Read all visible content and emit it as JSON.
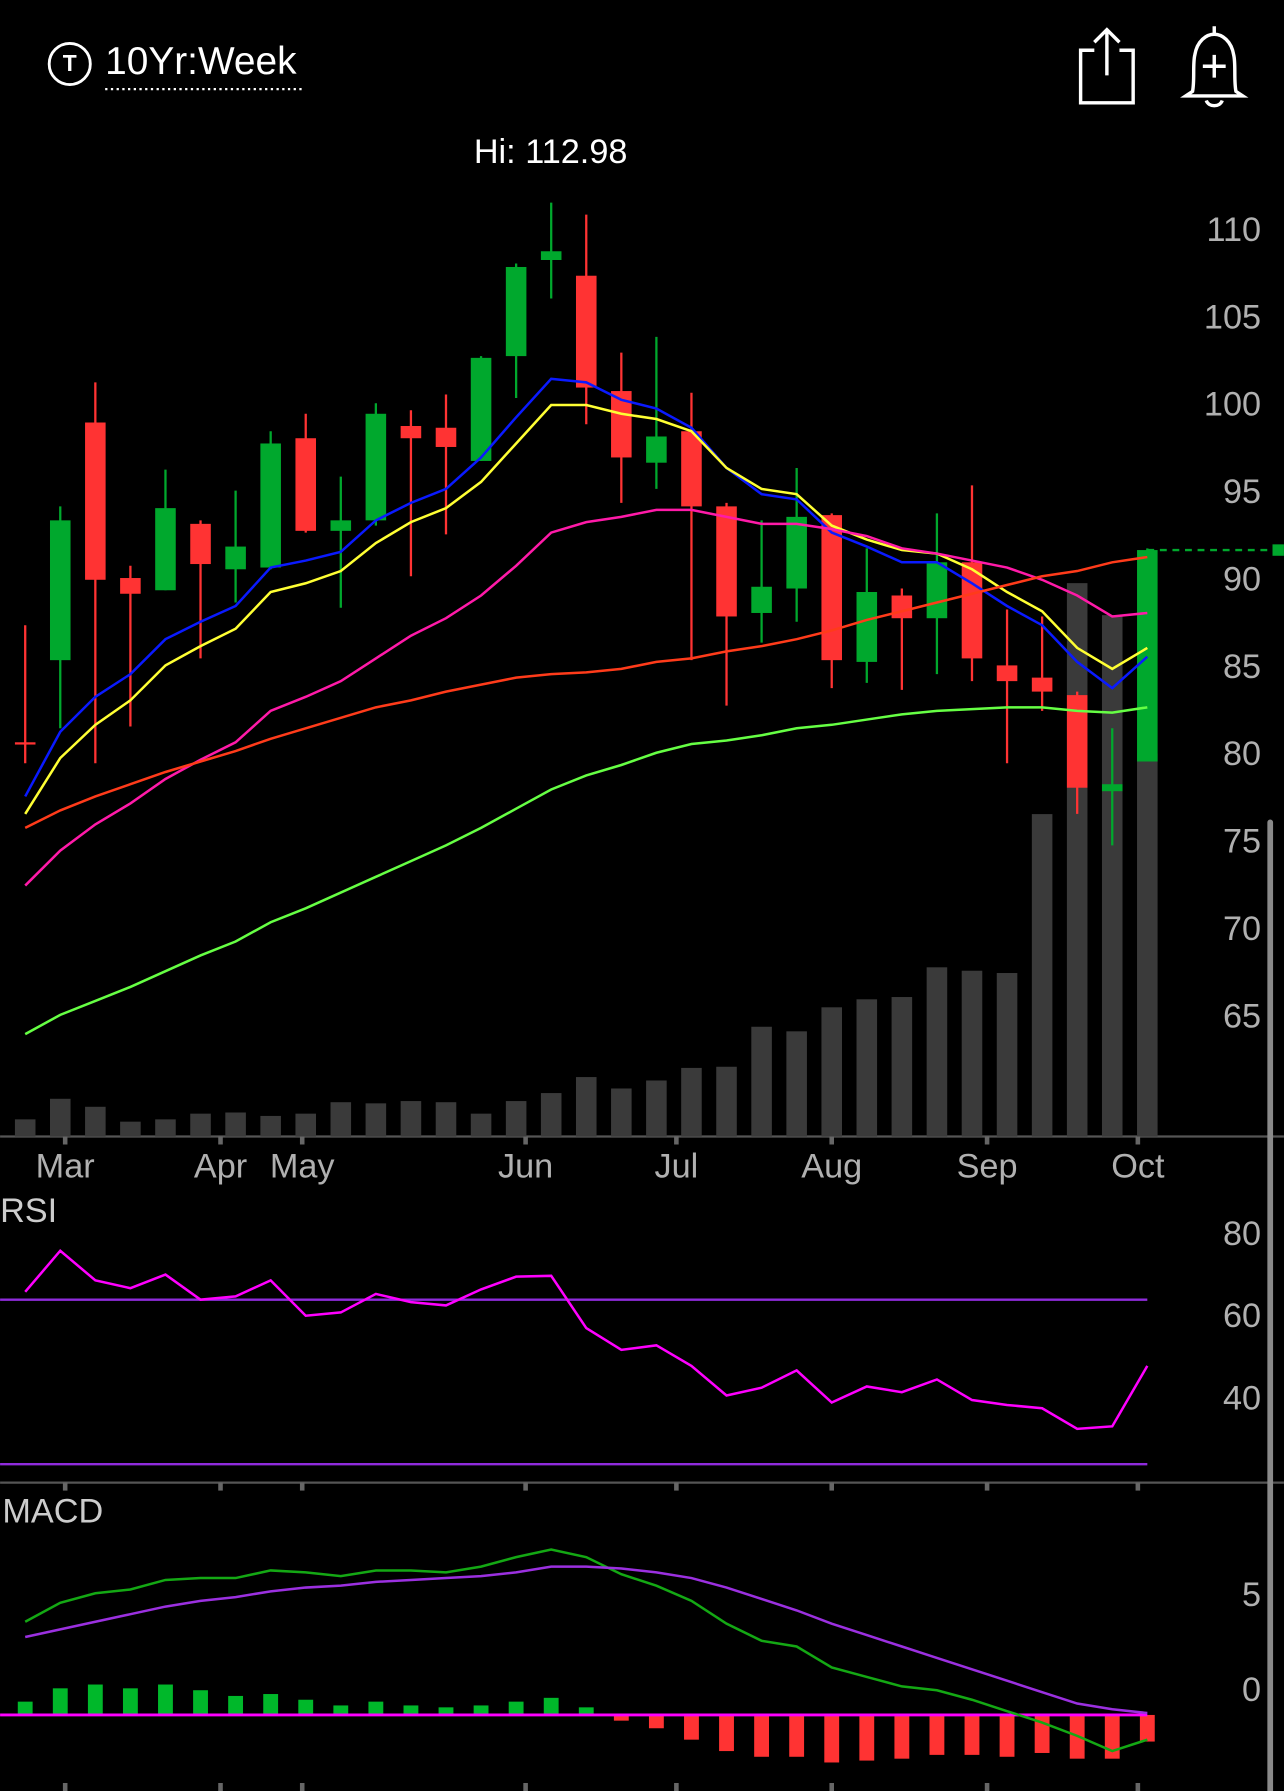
{
  "header": {
    "symbol_label": "10Yr:Week"
  },
  "chart_data": [
    {
      "type": "candlestick",
      "annotation": "Hi: 112.98",
      "categories": [
        null,
        null,
        null,
        null,
        null,
        null,
        null,
        null,
        null,
        null,
        null,
        null,
        null,
        null,
        null,
        null,
        null,
        null,
        null,
        null,
        null,
        null,
        null,
        null,
        null,
        null,
        null,
        null,
        null,
        null,
        null,
        null,
        null
      ],
      "open": [
        82.1,
        86.8,
        100.4,
        91.5,
        90.8,
        94.6,
        92.0,
        92.1,
        99.5,
        94.2,
        94.8,
        100.2,
        100.1,
        98.2,
        104.2,
        109.7,
        108.8,
        102.2,
        98.1,
        99.9,
        95.6,
        89.5,
        90.9,
        95.1,
        86.7,
        90.5,
        89.2,
        92.4,
        86.5,
        85.8,
        84.8,
        79.3,
        81.0
      ],
      "high": [
        88.8,
        95.6,
        102.7,
        92.2,
        97.7,
        94.8,
        96.5,
        99.9,
        100.9,
        97.3,
        101.5,
        101.1,
        102.0,
        104.2,
        109.5,
        112.98,
        112.3,
        104.4,
        105.3,
        102.1,
        95.8,
        94.8,
        97.8,
        95.2,
        93.2,
        90.9,
        95.2,
        96.8,
        89.7,
        89.3,
        85.0,
        82.9,
        93.2
      ],
      "low": [
        80.9,
        82.9,
        80.9,
        83.0,
        90.8,
        86.9,
        90.1,
        92.0,
        94.1,
        89.8,
        94.5,
        91.6,
        94.0,
        98.2,
        101.8,
        107.5,
        100.3,
        95.8,
        96.6,
        86.8,
        84.2,
        87.8,
        89.0,
        85.2,
        85.5,
        85.1,
        86.0,
        85.6,
        80.9,
        83.9,
        78.0,
        76.2,
        81.0
      ],
      "close": [
        82.0,
        94.8,
        91.4,
        90.6,
        95.5,
        92.3,
        93.3,
        99.2,
        94.2,
        94.8,
        100.9,
        99.5,
        99.0,
        104.1,
        109.3,
        110.2,
        102.4,
        98.4,
        99.6,
        95.6,
        89.3,
        91.0,
        95.0,
        86.8,
        90.7,
        89.2,
        92.4,
        86.9,
        85.6,
        85.0,
        79.5,
        79.7,
        93.1
      ],
      "up_color": "#00a82d",
      "down_color": "#ff3333",
      "volume": {
        "color": "#3a3a3a",
        "values": [
          15,
          33,
          26,
          13,
          15,
          20,
          21,
          18,
          20,
          30,
          29,
          31,
          30,
          20,
          31,
          38,
          52,
          42,
          49,
          60,
          61,
          96,
          92,
          113,
          120,
          122,
          148,
          145,
          143,
          282,
          484,
          456,
          335
        ]
      },
      "series": [
        {
          "color": "#0a1aff",
          "values": [
            79.0,
            82.7,
            84.7,
            86.0,
            88.0,
            89.0,
            89.9,
            92.1,
            92.5,
            93.0,
            94.8,
            95.8,
            96.6,
            98.4,
            100.7,
            102.9,
            102.7,
            101.7,
            101.2,
            100.1,
            97.8,
            96.3,
            96.0,
            94.1,
            93.3,
            92.4,
            92.4,
            91.2,
            89.9,
            88.8,
            86.7,
            85.2,
            87.0
          ]
        },
        {
          "color": "#ffff33",
          "values": [
            78.0,
            81.2,
            83.1,
            84.5,
            86.5,
            87.6,
            88.6,
            90.7,
            91.2,
            91.9,
            93.5,
            94.7,
            95.5,
            97.0,
            99.2,
            101.4,
            101.4,
            100.9,
            100.6,
            99.9,
            97.8,
            96.6,
            96.3,
            94.5,
            93.7,
            93.1,
            92.9,
            92.0,
            90.7,
            89.6,
            87.5,
            86.3,
            87.5
          ]
        },
        {
          "color": "#ff1aa8",
          "values": [
            73.9,
            75.9,
            77.4,
            78.6,
            80.0,
            81.1,
            82.1,
            83.9,
            84.7,
            85.6,
            86.9,
            88.2,
            89.2,
            90.5,
            92.2,
            94.1,
            94.7,
            95.0,
            95.4,
            95.4,
            95.0,
            94.6,
            94.6,
            94.3,
            93.9,
            93.2,
            92.9,
            92.5,
            92.1,
            91.4,
            90.5,
            89.3,
            89.5
          ]
        },
        {
          "color": "#ff3b1a",
          "values": [
            77.2,
            78.2,
            79.0,
            79.7,
            80.4,
            81.0,
            81.6,
            82.3,
            82.9,
            83.5,
            84.1,
            84.5,
            85.0,
            85.4,
            85.8,
            86.0,
            86.1,
            86.3,
            86.7,
            86.9,
            87.3,
            87.6,
            88.0,
            88.5,
            89.1,
            89.6,
            90.1,
            90.6,
            91.1,
            91.6,
            91.9,
            92.4,
            92.7
          ]
        },
        {
          "color": "#66ff44",
          "values": [
            65.4,
            66.5,
            67.3,
            68.1,
            69.0,
            69.9,
            70.7,
            71.8,
            72.6,
            73.5,
            74.4,
            75.3,
            76.2,
            77.2,
            78.3,
            79.4,
            80.2,
            80.8,
            81.5,
            82.0,
            82.2,
            82.5,
            82.9,
            83.1,
            83.4,
            83.7,
            83.9,
            84.0,
            84.1,
            84.1,
            83.9,
            83.8,
            84.1
          ]
        }
      ],
      "ylim": [
        59.5,
        117.5
      ],
      "yticks": [
        110,
        105,
        100,
        95,
        90,
        85,
        80,
        75,
        70,
        65
      ],
      "grid": true,
      "xticks": [
        {
          "value": 1.14,
          "label": "Mar"
        },
        {
          "value": 5.57,
          "label": "Apr"
        },
        {
          "value": 7.9,
          "label": "May"
        },
        {
          "value": 14.27,
          "label": "Jun"
        },
        {
          "value": 18.57,
          "label": "Jul"
        },
        {
          "value": 23.0,
          "label": "Aug"
        },
        {
          "value": 27.43,
          "label": "Sep"
        },
        {
          "value": 31.73,
          "label": "Oct"
        }
      ]
    },
    {
      "type": "line",
      "title": "RSI",
      "series": [
        {
          "color": "#ff00ff",
          "values": [
            71.9,
            81.9,
            74.7,
            72.8,
            76.1,
            70.0,
            70.8,
            74.7,
            66.1,
            66.9,
            71.4,
            69.4,
            68.6,
            72.5,
            75.6,
            75.8,
            63.1,
            57.8,
            58.9,
            53.9,
            46.7,
            48.6,
            52.8,
            45.0,
            48.9,
            47.5,
            50.6,
            45.6,
            44.4,
            43.6,
            38.6,
            39.2,
            53.9
          ]
        }
      ],
      "bands": [
        70,
        30
      ],
      "band_color": "#8f2bdc",
      "ylim": [
        25.8,
        94.4
      ],
      "yticks": [
        80,
        60,
        40
      ],
      "grid": true
    },
    {
      "type": "macd",
      "title": "MACD",
      "series": [
        {
          "color": "#14a814",
          "values": [
            4.9,
            5.9,
            6.4,
            6.6,
            7.1,
            7.2,
            7.2,
            7.6,
            7.5,
            7.3,
            7.6,
            7.6,
            7.5,
            7.8,
            8.3,
            8.7,
            8.3,
            7.4,
            6.8,
            6.0,
            4.8,
            3.9,
            3.6,
            2.5,
            2.0,
            1.5,
            1.3,
            0.8,
            0.2,
            -0.4,
            -1.1,
            -1.9,
            -1.3
          ]
        },
        {
          "color": "#9b30e0",
          "values": [
            4.1,
            4.5,
            4.9,
            5.3,
            5.7,
            6.0,
            6.2,
            6.5,
            6.7,
            6.8,
            7.0,
            7.1,
            7.2,
            7.3,
            7.5,
            7.8,
            7.8,
            7.7,
            7.5,
            7.2,
            6.7,
            6.1,
            5.5,
            4.8,
            4.2,
            3.6,
            3.0,
            2.4,
            1.8,
            1.2,
            0.6,
            0.3,
            0.1
          ]
        }
      ],
      "histogram": {
        "up_color": "#00b82a",
        "down_color": "#ff3333",
        "values": [
          0.7,
          1.4,
          1.6,
          1.4,
          1.6,
          1.3,
          1.0,
          1.1,
          0.8,
          0.5,
          0.7,
          0.5,
          0.4,
          0.5,
          0.7,
          0.9,
          0.4,
          -0.3,
          -0.7,
          -1.3,
          -1.9,
          -2.2,
          -2.2,
          -2.5,
          -2.4,
          -2.3,
          -2.1,
          -2.1,
          -2.2,
          -2.0,
          -2.3,
          -2.3,
          -1.4
        ]
      },
      "baseline_color": "#ff00ff",
      "ylim": [
        -4.0,
        11.8
      ],
      "yticks": [
        5,
        0
      ],
      "grid": true
    }
  ]
}
